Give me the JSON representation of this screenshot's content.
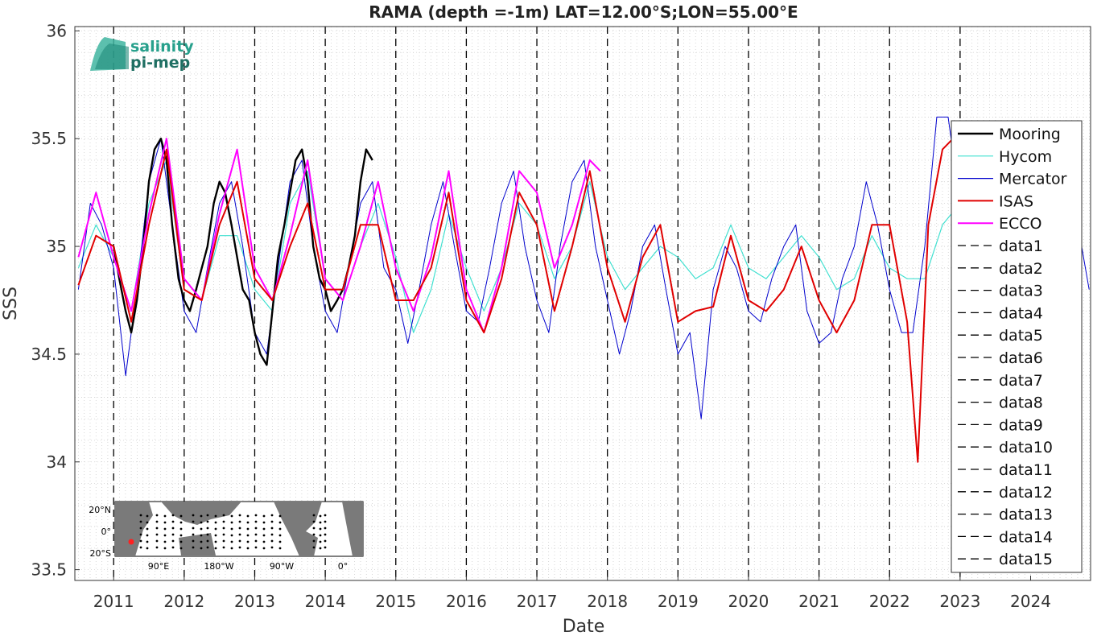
{
  "chart_data": {
    "type": "line",
    "title": "RAMA (depth =-1m) LAT=12.00°S;LON=55.00°E",
    "xlabel": "Date",
    "ylabel": "SSS",
    "xlim": [
      2010.45,
      2024.85
    ],
    "ylim": [
      33.45,
      36.02
    ],
    "yticks": [
      33.5,
      34,
      34.5,
      35,
      35.5,
      36
    ],
    "xticks": [
      2011,
      2012,
      2013,
      2014,
      2015,
      2016,
      2017,
      2018,
      2019,
      2020,
      2021,
      2022,
      2023,
      2024
    ],
    "grid": true,
    "legend_position": "right",
    "logo": {
      "line1": "salinity",
      "line2": "pi-mep"
    },
    "inset_map": {
      "lat_labels": [
        "20°N",
        "0°",
        "20°S"
      ],
      "lon_labels": [
        "90°E",
        "180°W",
        "90°W",
        "0°"
      ]
    },
    "vertical_markers": [
      2011,
      2012,
      2013,
      2014,
      2015,
      2016,
      2017,
      2018,
      2019,
      2020,
      2021,
      2022,
      2023
    ],
    "series": [
      {
        "name": "Mooring",
        "color": "#000000",
        "x": [
          2011.0,
          2011.08,
          2011.17,
          2011.25,
          2011.33,
          2011.42,
          2011.5,
          2011.58,
          2011.67,
          2011.75,
          2011.83,
          2011.92,
          2012.0,
          2012.08,
          2012.17,
          2012.25,
          2012.33,
          2012.42,
          2012.5,
          2012.58,
          2012.67,
          2012.75,
          2012.83,
          2012.92,
          2013.0,
          2013.08,
          2013.17,
          2013.25,
          2013.33,
          2013.42,
          2013.5,
          2013.58,
          2013.67,
          2013.75,
          2013.83,
          2013.92,
          2014.0,
          2014.08,
          2014.17,
          2014.25,
          2014.33,
          2014.42,
          2014.5,
          2014.58,
          2014.67
        ],
        "y": [
          35.0,
          34.85,
          34.7,
          34.6,
          34.75,
          35.0,
          35.3,
          35.45,
          35.5,
          35.4,
          35.1,
          34.85,
          34.75,
          34.7,
          34.8,
          34.9,
          35.0,
          35.2,
          35.3,
          35.25,
          35.1,
          34.95,
          34.8,
          34.75,
          34.6,
          34.5,
          34.45,
          34.7,
          34.95,
          35.1,
          35.25,
          35.4,
          35.45,
          35.3,
          35.0,
          34.85,
          34.8,
          34.7,
          34.75,
          34.8,
          34.9,
          35.05,
          35.3,
          35.45,
          35.4
        ]
      },
      {
        "name": "Hycom",
        "color": "#40e0d0",
        "x": [
          2010.5,
          2010.75,
          2011.0,
          2011.25,
          2011.5,
          2011.75,
          2012.0,
          2012.25,
          2012.5,
          2012.75,
          2013.0,
          2013.25,
          2013.5,
          2013.75,
          2014.0,
          2014.25,
          2014.5,
          2014.75,
          2015.0,
          2015.25,
          2015.5,
          2015.75,
          2016.0,
          2016.25,
          2016.5,
          2016.75,
          2017.0,
          2017.25,
          2017.5,
          2017.75,
          2018.0,
          2018.25,
          2018.5,
          2018.75,
          2019.0,
          2019.25,
          2019.5,
          2019.75,
          2020.0,
          2020.25,
          2020.5,
          2020.75,
          2021.0,
          2021.25,
          2021.5,
          2021.75,
          2022.0,
          2022.25,
          2022.5,
          2022.75,
          2023.0
        ],
        "y": [
          34.9,
          35.1,
          34.95,
          34.7,
          35.2,
          35.4,
          34.8,
          34.75,
          35.05,
          35.05,
          34.8,
          34.7,
          35.2,
          35.35,
          34.85,
          34.75,
          35.0,
          35.2,
          34.95,
          34.6,
          34.8,
          35.15,
          34.9,
          34.7,
          34.9,
          35.2,
          35.1,
          34.85,
          35.0,
          35.3,
          34.95,
          34.8,
          34.9,
          35.0,
          34.95,
          34.85,
          34.9,
          35.1,
          34.9,
          34.85,
          34.95,
          35.05,
          34.95,
          34.8,
          34.85,
          35.05,
          34.9,
          34.85,
          34.85,
          35.1,
          35.2
        ]
      },
      {
        "name": "Mercator",
        "color": "#0000cd",
        "x": [
          2010.5,
          2010.67,
          2010.83,
          2011.0,
          2011.17,
          2011.33,
          2011.5,
          2011.67,
          2011.83,
          2012.0,
          2012.17,
          2012.33,
          2012.5,
          2012.67,
          2012.83,
          2013.0,
          2013.17,
          2013.33,
          2013.5,
          2013.67,
          2013.83,
          2014.0,
          2014.17,
          2014.33,
          2014.5,
          2014.67,
          2014.83,
          2015.0,
          2015.17,
          2015.33,
          2015.5,
          2015.67,
          2015.83,
          2016.0,
          2016.17,
          2016.33,
          2016.5,
          2016.67,
          2016.83,
          2017.0,
          2017.17,
          2017.33,
          2017.5,
          2017.67,
          2017.83,
          2018.0,
          2018.17,
          2018.33,
          2018.5,
          2018.67,
          2018.83,
          2019.0,
          2019.17,
          2019.33,
          2019.5,
          2019.67,
          2019.83,
          2020.0,
          2020.17,
          2020.33,
          2020.5,
          2020.67,
          2020.83,
          2021.0,
          2021.17,
          2021.33,
          2021.5,
          2021.67,
          2021.83,
          2022.0,
          2022.17,
          2022.33,
          2022.5,
          2022.67,
          2022.83,
          2023.0,
          2023.17,
          2023.33,
          2023.5,
          2023.67,
          2023.83,
          2024.0,
          2024.17,
          2024.33,
          2024.5,
          2024.67,
          2024.83
        ],
        "y": [
          34.8,
          35.2,
          35.1,
          34.9,
          34.4,
          34.8,
          35.3,
          35.5,
          35.1,
          34.7,
          34.6,
          34.9,
          35.2,
          35.3,
          35.0,
          34.6,
          34.5,
          34.9,
          35.3,
          35.4,
          35.0,
          34.7,
          34.6,
          34.9,
          35.2,
          35.3,
          34.9,
          34.8,
          34.55,
          34.8,
          35.1,
          35.3,
          35.0,
          34.7,
          34.65,
          34.9,
          35.2,
          35.35,
          35.0,
          34.75,
          34.6,
          35.0,
          35.3,
          35.4,
          35.0,
          34.75,
          34.5,
          34.7,
          35.0,
          35.1,
          34.8,
          34.5,
          34.6,
          34.2,
          34.8,
          35.0,
          34.9,
          34.7,
          34.65,
          34.85,
          35.0,
          35.1,
          34.7,
          34.55,
          34.6,
          34.85,
          35.0,
          35.3,
          35.1,
          34.8,
          34.6,
          34.6,
          35.0,
          35.6,
          35.6,
          35.2,
          35.0,
          34.8,
          34.9,
          35.0,
          35.2,
          35.4,
          35.1,
          34.9,
          35.0,
          35.1,
          34.8
        ]
      },
      {
        "name": "ISAS",
        "color": "#e00000",
        "x": [
          2010.5,
          2010.75,
          2011.0,
          2011.25,
          2011.5,
          2011.75,
          2012.0,
          2012.25,
          2012.5,
          2012.75,
          2013.0,
          2013.25,
          2013.5,
          2013.75,
          2014.0,
          2014.25,
          2014.5,
          2014.75,
          2015.0,
          2015.25,
          2015.5,
          2015.75,
          2016.0,
          2016.25,
          2016.5,
          2016.75,
          2017.0,
          2017.25,
          2017.5,
          2017.75,
          2018.0,
          2018.25,
          2018.5,
          2018.75,
          2019.0,
          2019.25,
          2019.5,
          2019.75,
          2020.0,
          2020.25,
          2020.5,
          2020.75,
          2021.0,
          2021.25,
          2021.5,
          2021.75,
          2022.0,
          2022.25,
          2022.4,
          2022.55,
          2022.75,
          2022.9
        ],
        "y": [
          34.82,
          35.05,
          35.0,
          34.65,
          35.1,
          35.45,
          34.8,
          34.75,
          35.1,
          35.3,
          34.85,
          34.75,
          35.0,
          35.2,
          34.8,
          34.8,
          35.1,
          35.1,
          34.75,
          34.75,
          34.9,
          35.25,
          34.75,
          34.6,
          34.85,
          35.25,
          35.1,
          34.7,
          35.0,
          35.35,
          34.9,
          34.65,
          34.95,
          35.1,
          34.65,
          34.7,
          34.72,
          35.05,
          34.75,
          34.7,
          34.8,
          35.0,
          34.75,
          34.6,
          34.75,
          35.1,
          35.1,
          34.65,
          34.0,
          35.1,
          35.45,
          35.5
        ]
      },
      {
        "name": "ECCO",
        "color": "#ff00ff",
        "x": [
          2010.5,
          2010.75,
          2011.0,
          2011.25,
          2011.5,
          2011.75,
          2012.0,
          2012.25,
          2012.5,
          2012.75,
          2013.0,
          2013.25,
          2013.5,
          2013.75,
          2014.0,
          2014.25,
          2014.5,
          2014.75,
          2015.0,
          2015.25,
          2015.5,
          2015.75,
          2016.0,
          2016.25,
          2016.5,
          2016.75,
          2017.0,
          2017.25,
          2017.5,
          2017.75,
          2017.9
        ],
        "y": [
          34.95,
          35.25,
          34.95,
          34.7,
          35.15,
          35.5,
          34.85,
          34.75,
          35.15,
          35.45,
          34.9,
          34.75,
          35.05,
          35.4,
          34.85,
          34.75,
          35.0,
          35.3,
          34.9,
          34.7,
          34.95,
          35.35,
          34.8,
          34.6,
          34.9,
          35.35,
          35.25,
          34.9,
          35.1,
          35.4,
          35.35
        ]
      }
    ],
    "legend_entries": [
      "Mooring",
      "Hycom",
      "Mercator",
      "ISAS",
      "ECCO",
      "data1",
      "data2",
      "data3",
      "data4",
      "data5",
      "data6",
      "data7",
      "data8",
      "data9",
      "data10",
      "data11",
      "data12",
      "data13",
      "data14",
      "data15"
    ]
  }
}
